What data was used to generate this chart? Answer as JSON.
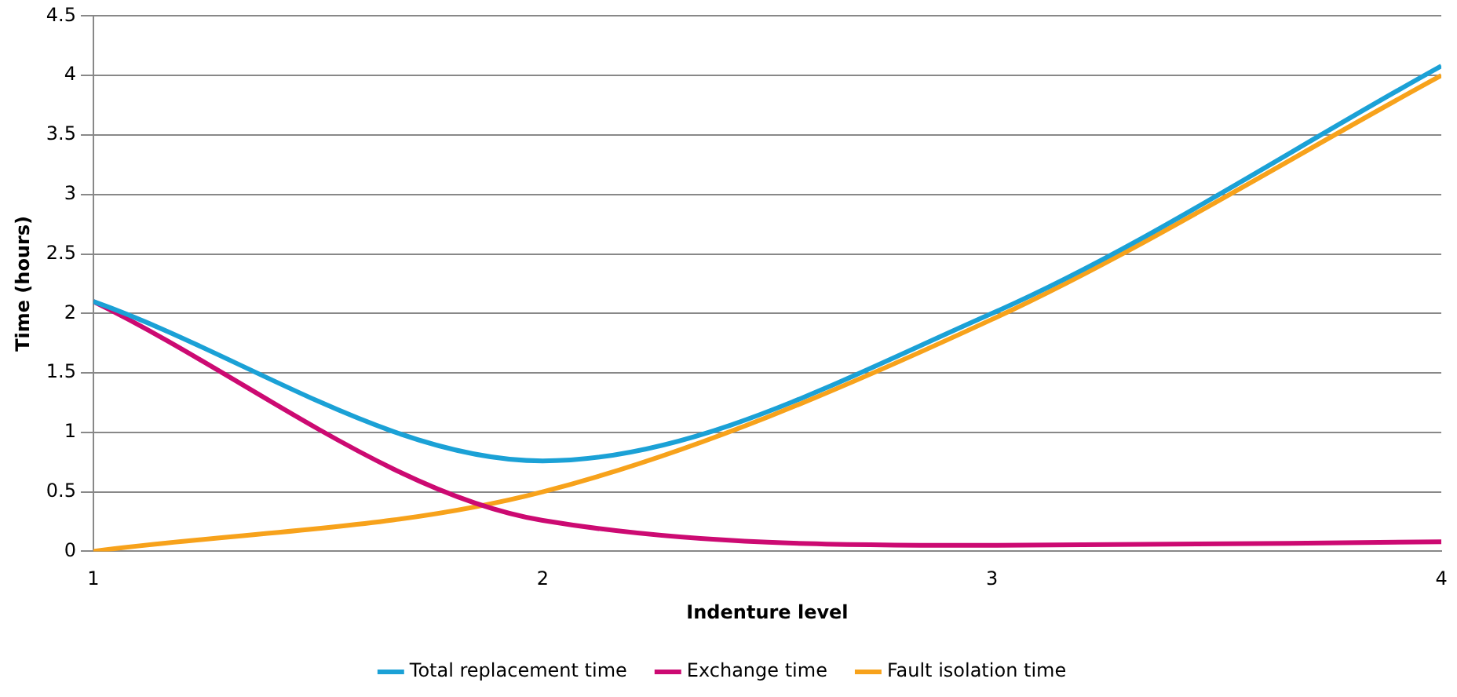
{
  "chart_data": {
    "type": "line",
    "xlabel": "Indenture level",
    "ylabel": "Time (hours)",
    "x": [
      1,
      2,
      3,
      4
    ],
    "series": [
      {
        "name": "Total replacement time",
        "color": "#1ba1d6",
        "values": [
          2.1,
          0.76,
          2.0,
          4.08
        ]
      },
      {
        "name": "Exchange time",
        "color": "#cc0a72",
        "values": [
          2.1,
          0.26,
          0.05,
          0.08
        ]
      },
      {
        "name": "Fault isolation time",
        "color": "#f7a21b",
        "values": [
          0,
          0.5,
          1.95,
          4.0
        ]
      }
    ],
    "xlim": [
      1,
      4
    ],
    "xticks": [
      1,
      2,
      3,
      4
    ],
    "ylim": [
      0,
      4.5
    ],
    "yticks": [
      0,
      0.5,
      1,
      1.5,
      2,
      2.5,
      3,
      3.5,
      4,
      4.5
    ],
    "grid": "y",
    "legend": "bottom",
    "marker": "none",
    "line_style": "solid"
  }
}
